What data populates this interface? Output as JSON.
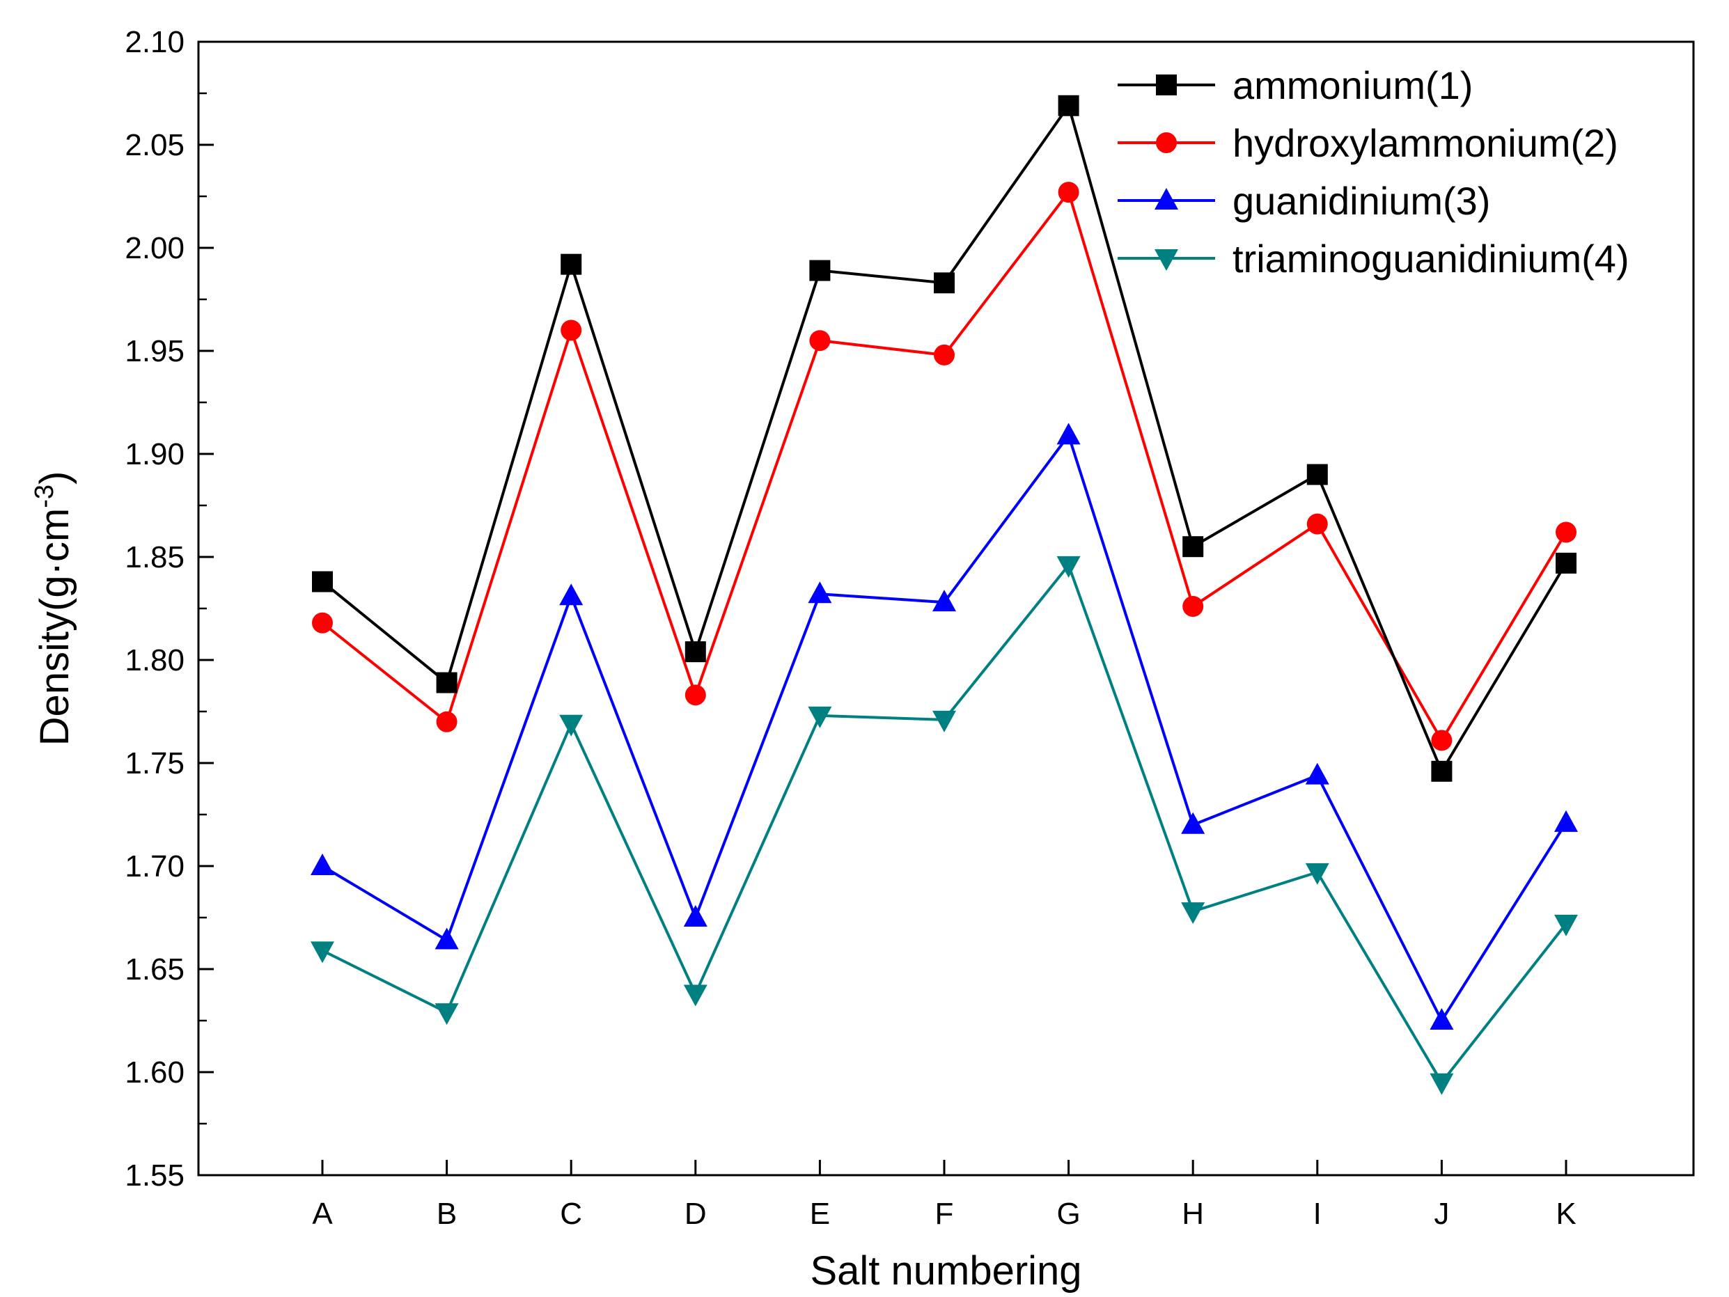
{
  "chart_data": {
    "type": "line",
    "title": "",
    "xlabel": "Salt numbering",
    "ylabel_main": "Density(g·cm",
    "ylabel_sup": "-3",
    "ylabel_close": ")",
    "categories": [
      "A",
      "B",
      "C",
      "D",
      "E",
      "F",
      "G",
      "H",
      "I",
      "J",
      "K"
    ],
    "ylim": [
      1.55,
      2.1
    ],
    "ytick_step": 0.05,
    "ytick_labels": [
      "1.55",
      "1.60",
      "1.65",
      "1.70",
      "1.75",
      "1.80",
      "1.85",
      "1.90",
      "1.95",
      "2.00",
      "2.05",
      "2.10"
    ],
    "grid": false,
    "legend_position": "top-right",
    "series": [
      {
        "name": "ammonium(1)",
        "color": "#000000",
        "marker": "square",
        "values": [
          1.838,
          1.789,
          1.992,
          1.804,
          1.989,
          1.983,
          2.069,
          1.855,
          1.89,
          1.746,
          1.847
        ]
      },
      {
        "name": "hydroxylammonium(2)",
        "color": "#ff0000",
        "marker": "circle",
        "values": [
          1.818,
          1.77,
          1.96,
          1.783,
          1.955,
          1.948,
          2.027,
          1.826,
          1.866,
          1.761,
          1.862
        ]
      },
      {
        "name": "guanidinium(3)",
        "color": "#0000ff",
        "marker": "triangle-up",
        "values": [
          1.7,
          1.664,
          1.831,
          1.675,
          1.832,
          1.828,
          1.909,
          1.72,
          1.744,
          1.625,
          1.721
        ]
      },
      {
        "name": "triaminoguanidinium(4)",
        "color": "#008080",
        "marker": "triangle-down",
        "values": [
          1.659,
          1.629,
          1.769,
          1.638,
          1.773,
          1.771,
          1.846,
          1.678,
          1.697,
          1.595,
          1.672
        ]
      }
    ]
  }
}
